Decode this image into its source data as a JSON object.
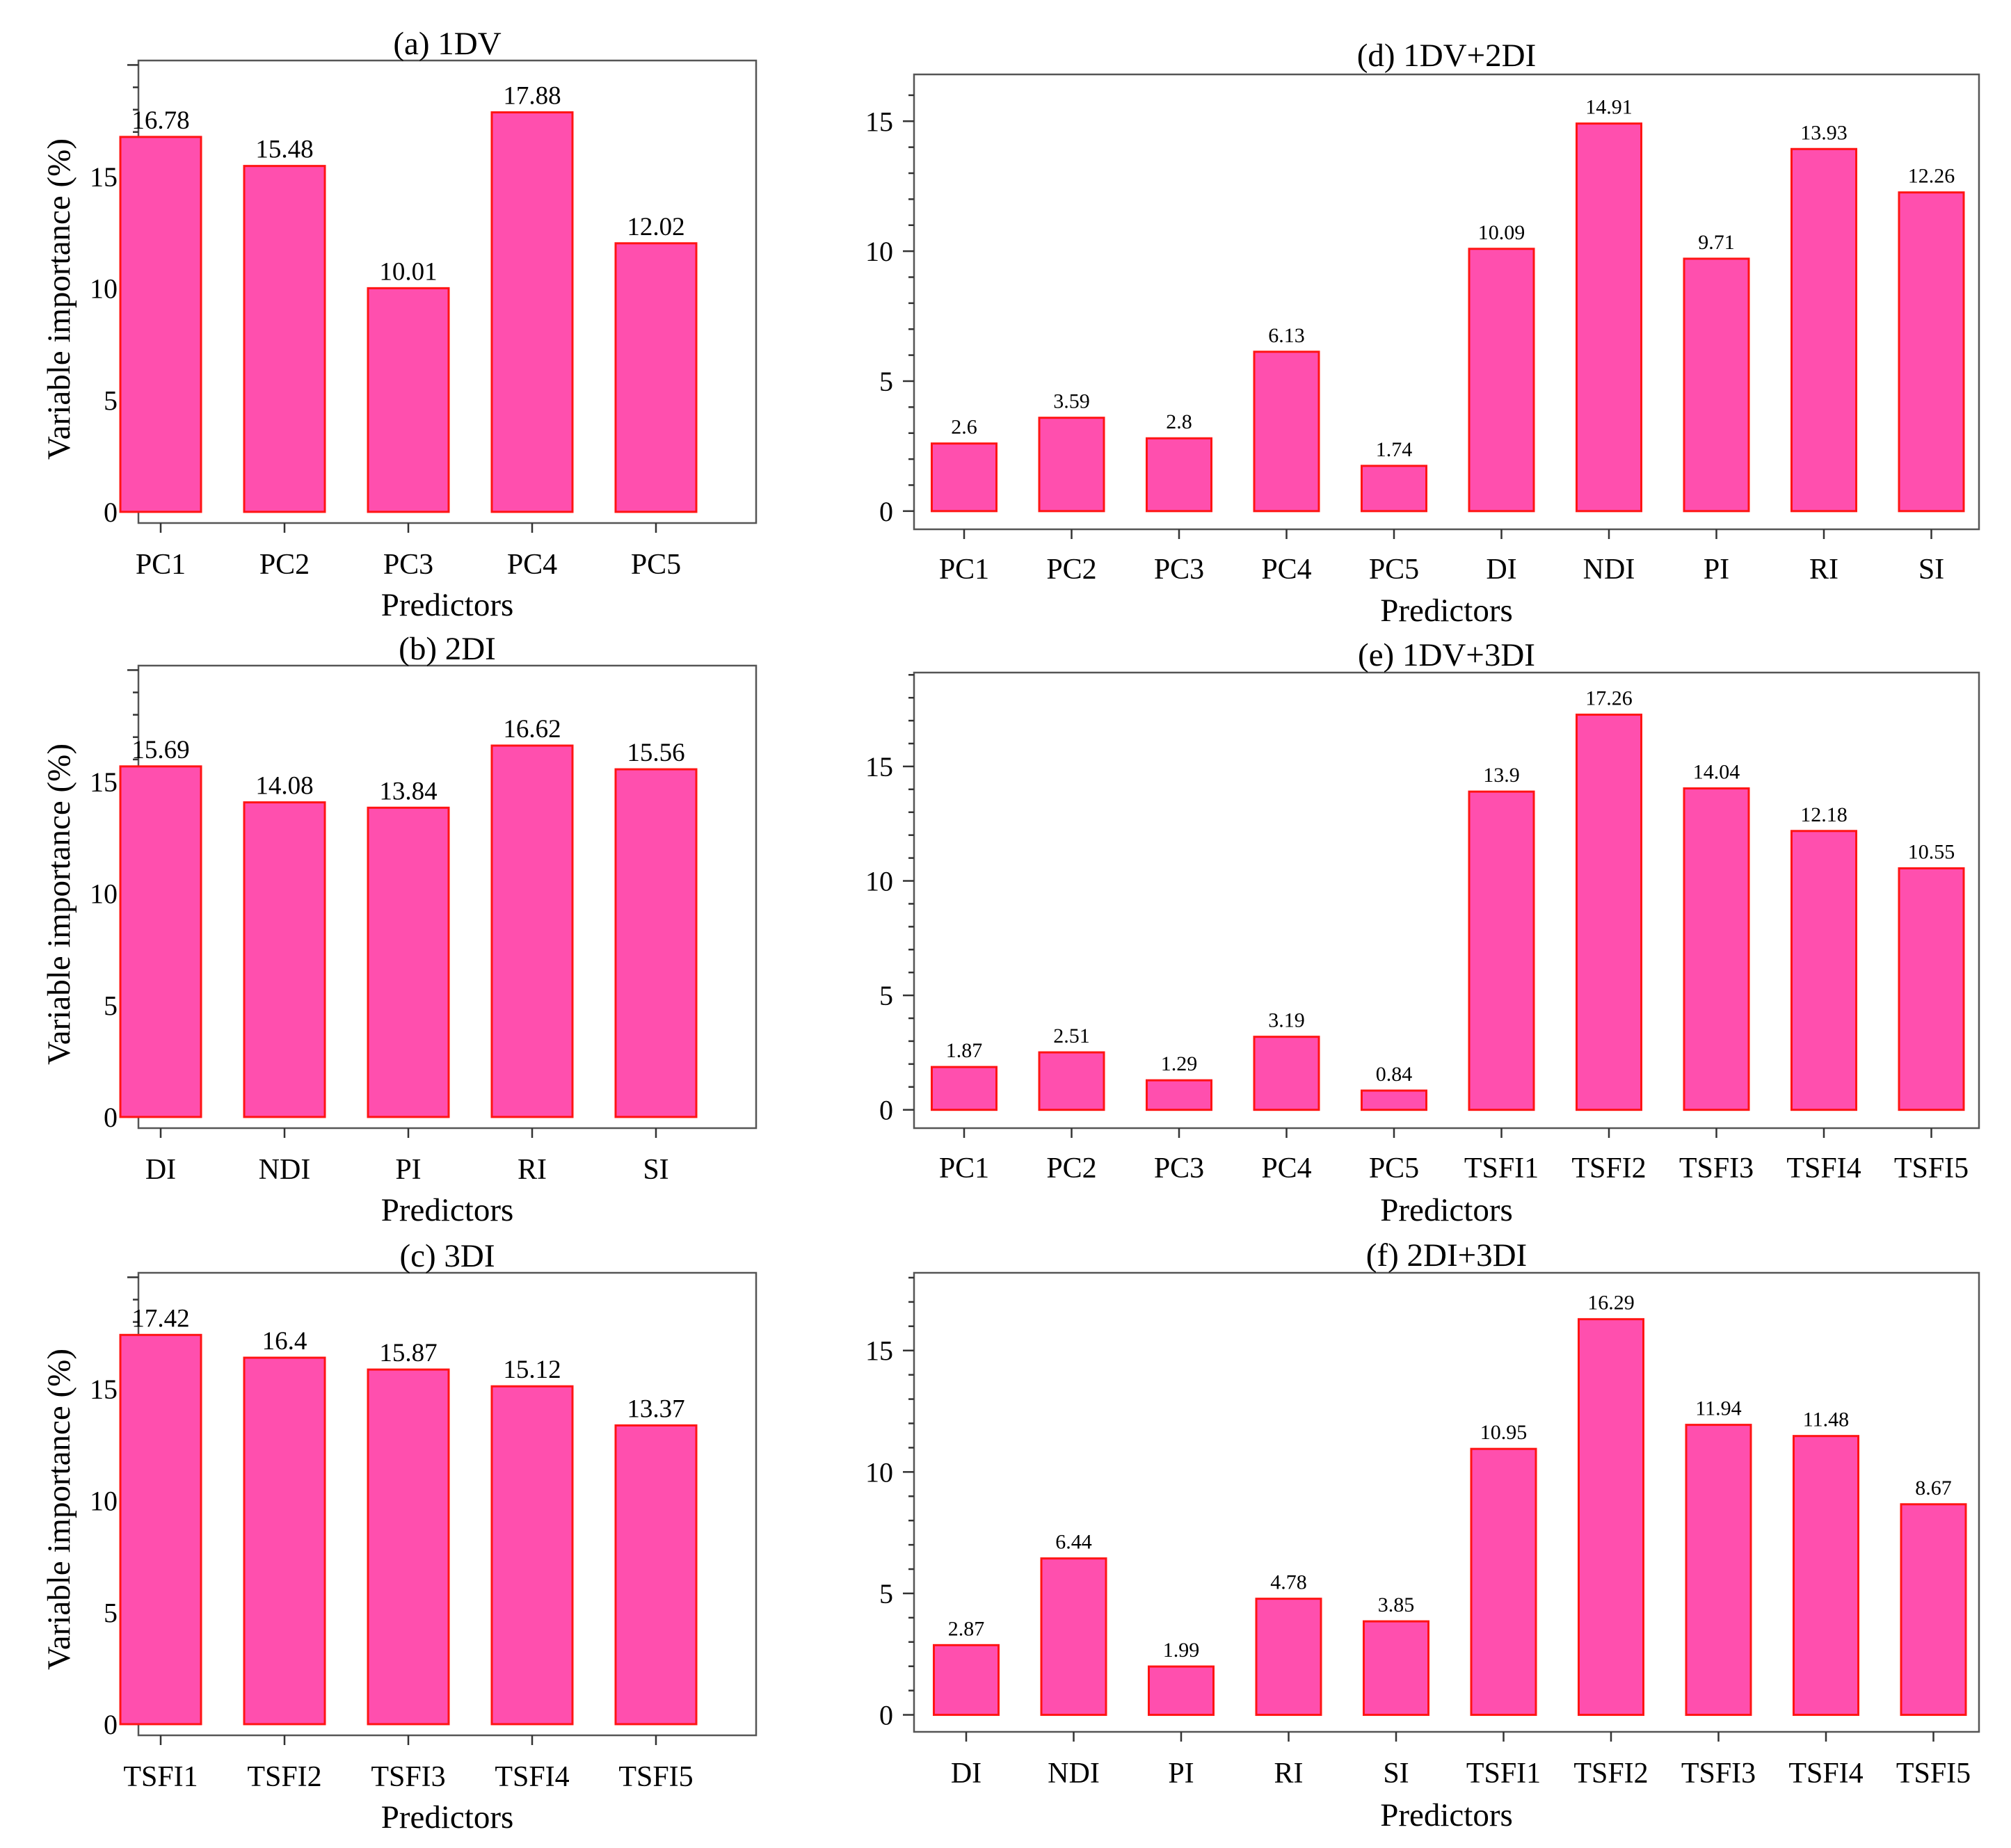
{
  "figure": {
    "shared_ylabel": "Variable importance (%)",
    "shared_xlabel": "Predictors"
  },
  "chart_data": [
    {
      "type": "bar",
      "title": "(a) 1DV",
      "xlabel": "Predictors",
      "ylabel": "Variable importance (%)",
      "categories": [
        "PC1",
        "PC2",
        "PC3",
        "PC4",
        "PC5"
      ],
      "values": [
        16.78,
        15.48,
        10.01,
        17.88,
        12.02
      ],
      "value_labels": [
        "16.78",
        "15.48",
        "10.01",
        "17.88",
        "12.02"
      ],
      "yticks": [
        0,
        5,
        10,
        15
      ],
      "ylim": [
        -0.5,
        20.2
      ],
      "color": "#ff4fae",
      "edge_color": "#ff1414"
    },
    {
      "type": "bar",
      "title": "(b) 2DI",
      "xlabel": "Predictors",
      "ylabel": "Variable importance (%)",
      "categories": [
        "DI",
        "NDI",
        "PI",
        "RI",
        "SI"
      ],
      "values": [
        15.69,
        14.08,
        13.84,
        16.62,
        15.56
      ],
      "value_labels": [
        "15.69",
        "14.08",
        "13.84",
        "16.62",
        "15.56"
      ],
      "yticks": [
        0,
        5,
        10,
        15
      ],
      "ylim": [
        -0.5,
        20.2
      ],
      "color": "#ff4fae",
      "edge_color": "#ff1414"
    },
    {
      "type": "bar",
      "title": "(c) 3DI",
      "xlabel": "Predictors",
      "ylabel": "Variable importance (%)",
      "categories": [
        "TSFI1",
        "TSFI2",
        "TSFI3",
        "TSFI4",
        "TSFI5"
      ],
      "values": [
        17.42,
        16.4,
        15.87,
        15.12,
        13.37
      ],
      "value_labels": [
        "17.42",
        "16.4",
        "15.87",
        "15.12",
        "13.37"
      ],
      "yticks": [
        0,
        5,
        10,
        15
      ],
      "ylim": [
        -0.5,
        20.2
      ],
      "color": "#ff4fae",
      "edge_color": "#ff1414"
    },
    {
      "type": "bar",
      "title": "(d) 1DV+2DI",
      "xlabel": "Predictors",
      "ylabel": "",
      "categories": [
        "PC1",
        "PC2",
        "PC3",
        "PC4",
        "PC5",
        "DI",
        "NDI",
        "PI",
        "RI",
        "SI"
      ],
      "values": [
        2.6,
        3.59,
        2.8,
        6.13,
        1.74,
        10.09,
        14.91,
        9.71,
        13.93,
        12.26
      ],
      "value_labels": [
        "2.6",
        "3.59",
        "2.8",
        "6.13",
        "1.74",
        "10.09",
        "14.91",
        "9.71",
        "13.93",
        "12.26"
      ],
      "yticks": [
        0,
        5,
        10,
        15
      ],
      "ylim": [
        -0.7,
        16.8
      ],
      "color": "#ff4fae",
      "edge_color": "#ff1414"
    },
    {
      "type": "bar",
      "title": "(e) 1DV+3DI",
      "xlabel": "Predictors",
      "ylabel": "",
      "categories": [
        "PC1",
        "PC2",
        "PC3",
        "PC4",
        "PC5",
        "TSFI1",
        "TSFI2",
        "TSFI3",
        "TSFI4",
        "TSFI5"
      ],
      "values": [
        1.87,
        2.51,
        1.29,
        3.19,
        0.84,
        13.9,
        17.26,
        14.04,
        12.18,
        10.55
      ],
      "value_labels": [
        "1.87",
        "2.51",
        "1.29",
        "3.19",
        "0.84",
        "13.9",
        "17.26",
        "14.04",
        "12.18",
        "10.55"
      ],
      "yticks": [
        0,
        5,
        10,
        15
      ],
      "ylim": [
        -0.8,
        19.1
      ],
      "color": "#ff4fae",
      "edge_color": "#ff1414"
    },
    {
      "type": "bar",
      "title": "(f) 2DI+3DI",
      "xlabel": "Predictors",
      "ylabel": "",
      "categories": [
        "DI",
        "NDI",
        "PI",
        "RI",
        "SI",
        "TSFI1",
        "TSFI2",
        "TSFI3",
        "TSFI4",
        "TSFI5"
      ],
      "values": [
        2.87,
        6.44,
        1.99,
        4.78,
        3.85,
        10.95,
        16.29,
        11.94,
        11.48,
        8.67
      ],
      "value_labels": [
        "2.87",
        "6.44",
        "1.99",
        "4.78",
        "3.85",
        "10.95",
        "16.29",
        "11.94",
        "11.48",
        "8.67"
      ],
      "yticks": [
        0,
        5,
        10,
        15
      ],
      "ylim": [
        -0.7,
        18.2
      ],
      "color": "#ff4fae",
      "edge_color": "#ff1414"
    }
  ]
}
